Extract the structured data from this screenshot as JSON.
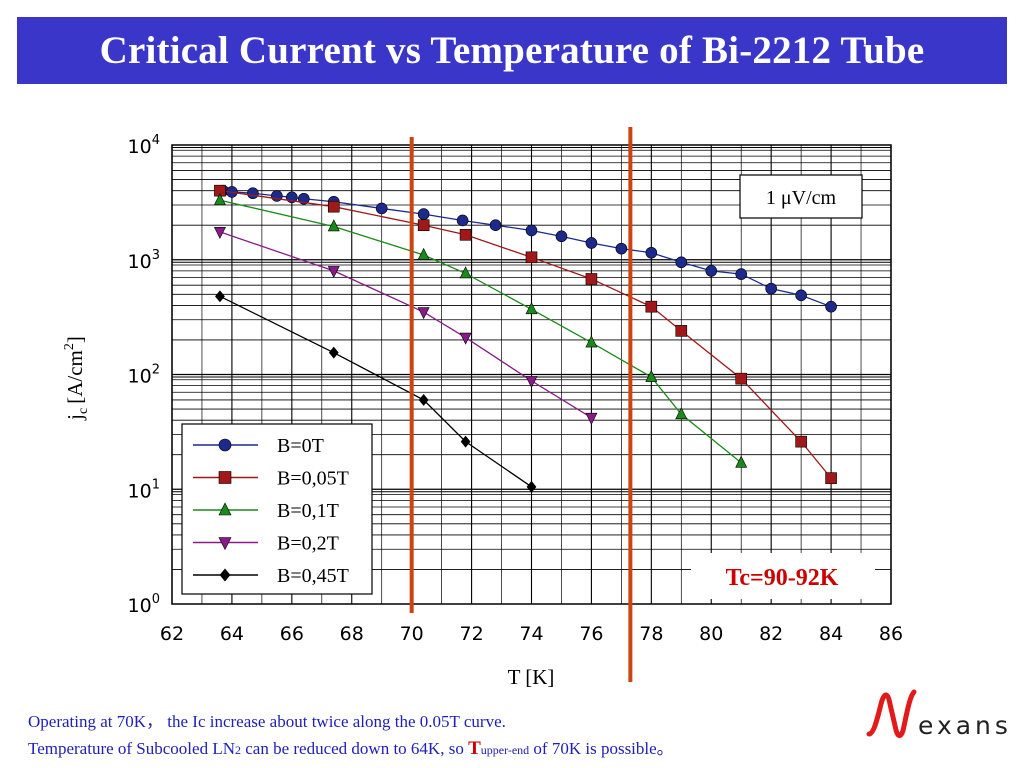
{
  "title": "Critical Current vs Temperature of Bi-2212 Tube",
  "notes": {
    "line1": "Operating at 70K， the Ic increase about twice along the 0.05T curve.",
    "line2_pre": "Temperature of Subcooled LN",
    "line2_sub": "2",
    "line2_mid": " can be reduced down to 64K, so ",
    "line2_bold": "T",
    "line2_upper": "upper-end",
    "line2_post": " of 70K is possible。"
  },
  "logo": {
    "text": "exans",
    "icon": "nexans-wave-logo"
  },
  "colors": {
    "title_bg": "#3a36c9",
    "vline": "#cc4411",
    "tc_text": "#cc0000",
    "note_text": "#2020b8"
  },
  "chart_data": {
    "type": "line",
    "title": "",
    "xlabel": "T [K]",
    "ylabel_main": "j",
    "ylabel_sub": "c",
    "ylabel_unit": "[A/cm",
    "ylabel_sup": "2",
    "ylabel_close": "]",
    "xlim": [
      62,
      86
    ],
    "ylim": [
      1,
      10000
    ],
    "yscale": "log",
    "xticks": [
      "62",
      "64",
      "66",
      "68",
      "70",
      "72",
      "74",
      "76",
      "78",
      "80",
      "82",
      "84",
      "86"
    ],
    "yticks": [
      {
        "base": "10",
        "exp": "0"
      },
      {
        "base": "10",
        "exp": "1"
      },
      {
        "base": "10",
        "exp": "2"
      },
      {
        "base": "10",
        "exp": "3"
      },
      {
        "base": "10",
        "exp": "4"
      }
    ],
    "grid": true,
    "criterion_label": "1 μV/cm",
    "tc_label": "Tc=90-92K",
    "vlines": [
      70,
      77.3
    ],
    "legend_position": "bottom-left",
    "series": [
      {
        "name": "B=0T",
        "color": "#1c2a8c",
        "marker": "circle",
        "x": [
          63.7,
          64,
          64.7,
          65.5,
          66,
          66.4,
          67.4,
          69,
          70.4,
          71.7,
          72.8,
          74,
          75,
          76,
          77,
          78,
          79,
          80,
          81,
          82,
          83,
          84
        ],
        "y": [
          4000,
          3900,
          3800,
          3600,
          3500,
          3400,
          3200,
          2800,
          2500,
          2200,
          2000,
          1800,
          1600,
          1400,
          1250,
          1150,
          950,
          800,
          750,
          560,
          490,
          390
        ]
      },
      {
        "name": "B=0,05T",
        "color": "#a01818",
        "marker": "square",
        "x": [
          63.6,
          67.4,
          70.4,
          71.8,
          74,
          76,
          78,
          79,
          81,
          83,
          84
        ],
        "y": [
          4000,
          2900,
          2000,
          1650,
          1050,
          680,
          390,
          240,
          92,
          26,
          12.5
        ]
      },
      {
        "name": "B=0,1T",
        "color": "#1a8a1a",
        "marker": "triangle-up",
        "x": [
          63.6,
          67.4,
          70.4,
          71.8,
          74,
          76,
          78,
          79,
          81
        ],
        "y": [
          3300,
          1950,
          1100,
          760,
          370,
          190,
          95,
          45,
          17
        ]
      },
      {
        "name": "B=0,2T",
        "color": "#8a1a8a",
        "marker": "triangle-down",
        "x": [
          63.6,
          67.4,
          70.4,
          71.8,
          74,
          76
        ],
        "y": [
          1750,
          800,
          350,
          210,
          88,
          42
        ]
      },
      {
        "name": "B=0,45T",
        "color": "#000000",
        "marker": "diamond",
        "x": [
          63.6,
          67.4,
          70.4,
          71.8,
          74
        ],
        "y": [
          480,
          155,
          60,
          26,
          10.5
        ]
      }
    ]
  }
}
